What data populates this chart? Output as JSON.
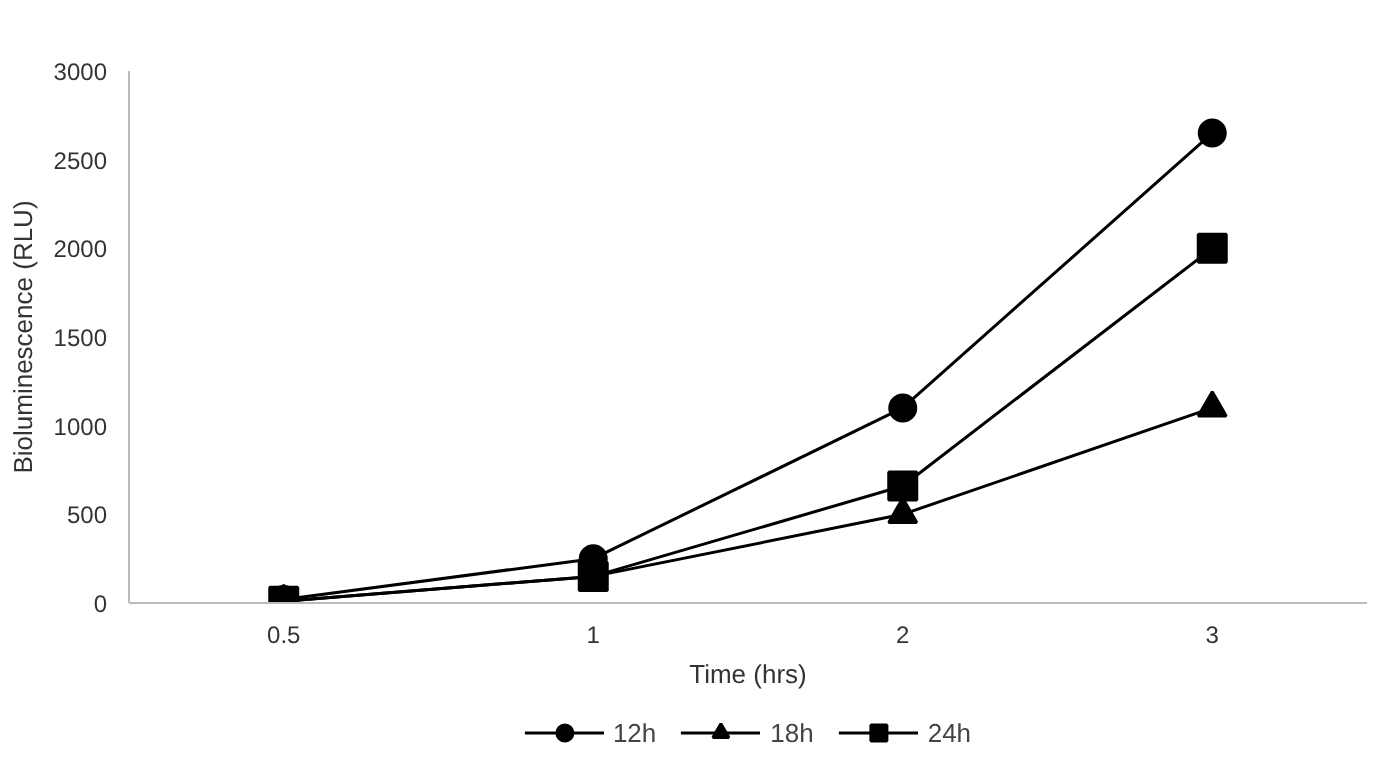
{
  "chart_data": {
    "type": "line",
    "xlabel": "Time (hrs)",
    "ylabel": "Bioluminescence (RLU)",
    "categories": [
      "0.5",
      "1",
      "2",
      "3"
    ],
    "ylim": [
      0,
      3000
    ],
    "yticks": [
      0,
      500,
      1000,
      1500,
      2000,
      2500,
      3000
    ],
    "grid": false,
    "legend": "bottom",
    "line_style": "solid",
    "series": [
      {
        "name": "12h",
        "color": "#000000",
        "marker": "circle",
        "values": [
          20,
          250,
          1100,
          2650
        ]
      },
      {
        "name": "18h",
        "color": "#000000",
        "marker": "triangle",
        "values": [
          10,
          150,
          500,
          1100
        ]
      },
      {
        "name": "24h",
        "color": "#000000",
        "marker": "square",
        "values": [
          10,
          150,
          660,
          2000
        ]
      }
    ]
  }
}
